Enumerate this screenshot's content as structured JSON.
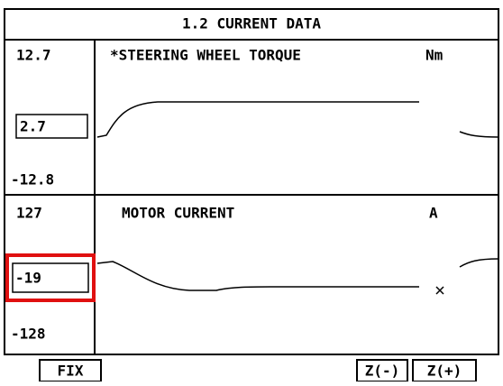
{
  "title": "1.2 CURRENT DATA",
  "panels": [
    {
      "label": "*STEERING WHEEL TORQUE",
      "unit": "Nm",
      "max": "12.7",
      "current": "2.7",
      "min": "-12.8"
    },
    {
      "label": "MOTOR CURRENT",
      "unit": "A",
      "max": "127",
      "current": "-19",
      "min": "-128"
    }
  ],
  "buttons": [
    "FIX",
    "Z(-)",
    "Z(+)"
  ]
}
